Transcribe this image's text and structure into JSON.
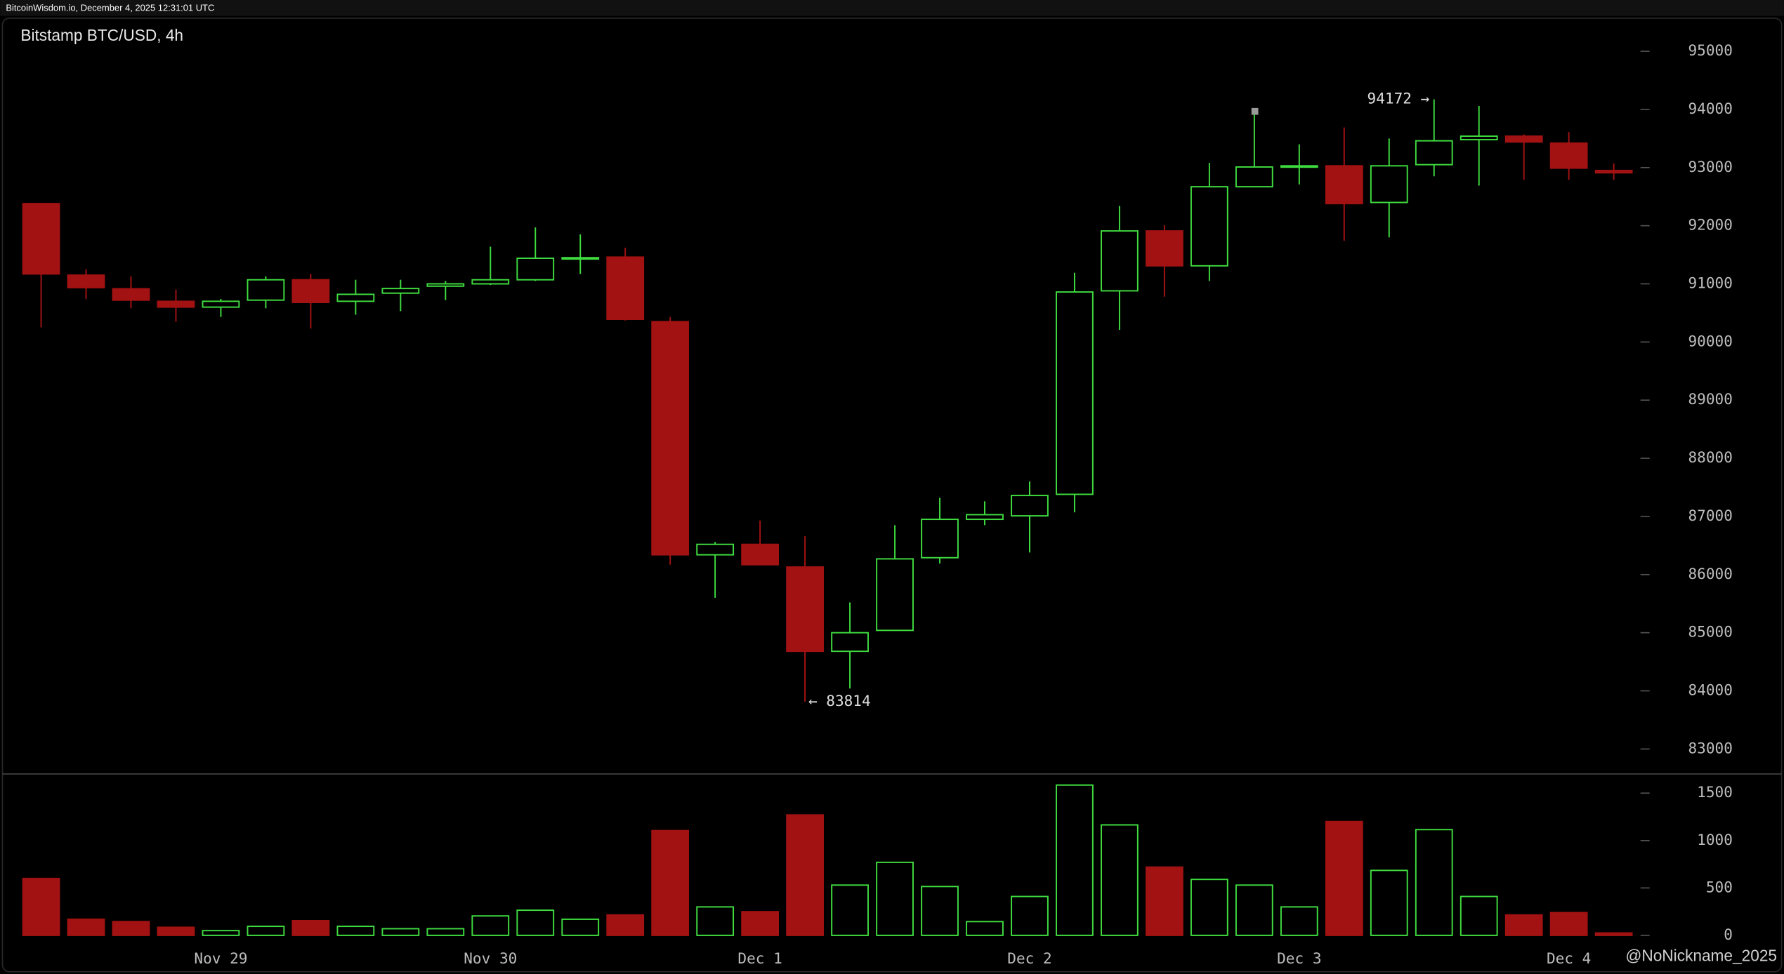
{
  "source": "BitcoinWisdom.io, December 4, 2025 12:31:01 UTC",
  "watermark": "@NoNickname_2025",
  "chart_data": [
    {
      "type": "candlestick",
      "title": "Bitstamp BTC/USD, 4h",
      "categories": [
        null,
        null,
        null,
        null,
        "Nov 29",
        null,
        null,
        null,
        null,
        null,
        "Nov 30",
        null,
        null,
        null,
        null,
        null,
        "Dec 1",
        null,
        null,
        null,
        null,
        null,
        "Dec 2",
        null,
        null,
        null,
        null,
        null,
        "Dec 3",
        null,
        null,
        null,
        null,
        null,
        "Dec 4",
        null
      ],
      "open": [
        92380,
        91150,
        90915,
        90700,
        90600,
        90720,
        91070,
        90700,
        90840,
        90960,
        91000,
        91070,
        91440,
        91460,
        90350,
        86340,
        86520,
        86130,
        84680,
        85040,
        86290,
        86950,
        87010,
        87380,
        90880,
        91910,
        91310,
        92670,
        93010,
        93030,
        92400,
        93050,
        93480,
        93540,
        93420,
        92950
      ],
      "high": [
        92380,
        91250,
        91130,
        90900,
        90740,
        91130,
        91170,
        91070,
        91070,
        91050,
        91640,
        91970,
        91850,
        91620,
        90430,
        86560,
        86930,
        86660,
        85520,
        86850,
        87320,
        87260,
        87600,
        91190,
        92340,
        92010,
        93080,
        93920,
        93400,
        93690,
        93500,
        94172,
        94060,
        93570,
        93610,
        93070
      ],
      "low": [
        90252,
        90740,
        90580,
        90350,
        90430,
        90580,
        90230,
        90470,
        90530,
        90720,
        90980,
        91050,
        91170,
        90370,
        86170,
        85600,
        86170,
        83814,
        84040,
        85040,
        86190,
        86850,
        86380,
        87070,
        90210,
        90780,
        91050,
        92670,
        92710,
        91740,
        91800,
        92850,
        92690,
        92790,
        92790,
        92790
      ],
      "close": [
        91170,
        90935,
        90720,
        90600,
        90700,
        91070,
        90680,
        90820,
        90920,
        91000,
        91070,
        91440,
        91450,
        90390,
        86340,
        86520,
        86170,
        84680,
        85000,
        86270,
        86950,
        87030,
        87360,
        90860,
        91910,
        91310,
        92670,
        93010,
        93030,
        92380,
        93030,
        93460,
        93540,
        93440,
        92990,
        92910
      ],
      "up_color": "#3fdc3f",
      "down_color": "#a31212",
      "ylim": [
        82590,
        95530
      ],
      "yticks": [
        83000,
        84000,
        85000,
        86000,
        87000,
        88000,
        89000,
        90000,
        91000,
        92000,
        93000,
        94000,
        95000
      ],
      "grid": false,
      "annotations": [
        {
          "label": "94172 →",
          "value": 94172
        },
        {
          "label": "← 83814",
          "value": 83814
        }
      ]
    },
    {
      "type": "bar",
      "values": [
        600,
        170,
        145,
        85,
        50,
        95,
        155,
        95,
        70,
        70,
        205,
        265,
        170,
        215,
        1105,
        300,
        250,
        1270,
        530,
        770,
        515,
        145,
        410,
        1585,
        1165,
        720,
        590,
        530,
        300,
        1200,
        685,
        1115,
        410,
        215,
        240,
        25
      ],
      "ylim": [
        -84,
        1690
      ],
      "yticks": [
        0,
        500,
        1000,
        1500
      ],
      "grid": false
    }
  ]
}
